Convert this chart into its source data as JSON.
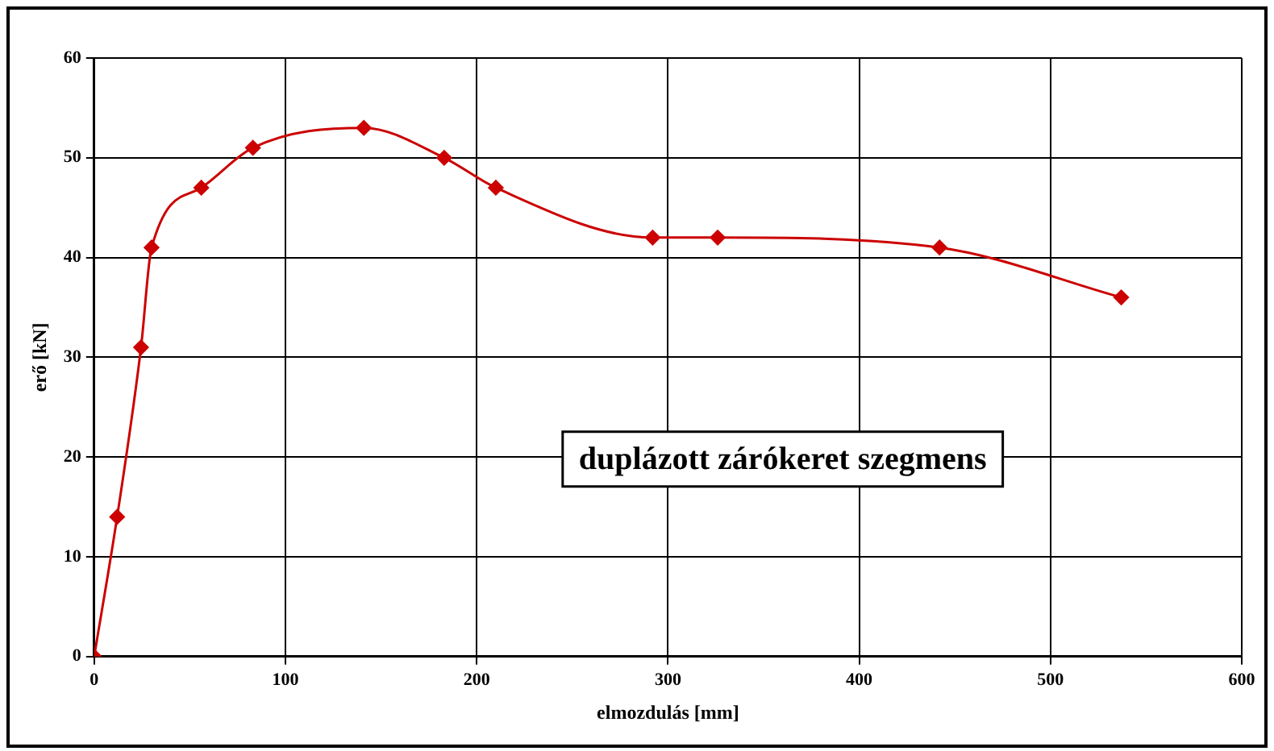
{
  "chart_data": {
    "type": "line",
    "xlabel": "elmozdulás [mm]",
    "ylabel": "erő [kN]",
    "x": [
      0,
      12,
      24.5,
      30,
      56,
      83,
      141,
      183,
      210,
      292,
      326,
      442,
      537
    ],
    "series": [
      {
        "color": "#cc0000",
        "values": [
          0,
          14,
          31,
          41,
          47,
          51,
          53,
          50,
          47,
          42,
          42,
          41,
          36
        ]
      }
    ],
    "xlim": [
      0,
      600
    ],
    "xticks": [
      0,
      100,
      200,
      300,
      400,
      500,
      600
    ],
    "ylim": [
      0,
      60
    ],
    "yticks": [
      0,
      10,
      20,
      30,
      40,
      50,
      60
    ],
    "grid": true,
    "legend": false,
    "marker": "diamond",
    "line_style": "solid",
    "annotations": [
      "duplázott zárókeret szegmens"
    ]
  }
}
